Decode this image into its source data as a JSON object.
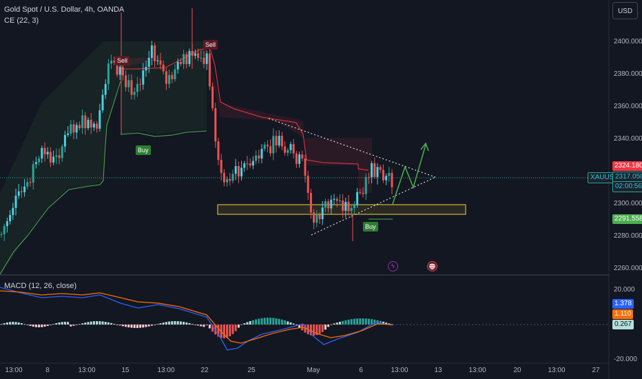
{
  "header": {
    "symbol_title": "Gold Spot / U.S. Dollar, 4h, OANDA",
    "indicator_ce": "CE (22, 3)",
    "currency": "USD"
  },
  "macd": {
    "label": "MACD (12, 26, close)"
  },
  "price_axis": {
    "ticks": [
      "2400.000",
      "2380.000",
      "2360.000",
      "2340.000",
      "2300.000",
      "2280.000",
      "2260.000"
    ],
    "macd_ticks": [
      "20.000",
      "-20.000"
    ]
  },
  "tags": {
    "upper_stop": "2324.180",
    "symbol": "XAUUSD",
    "last_price": "2317.050",
    "countdown": "02:00:56",
    "lower_stop": "2291.558",
    "macd_val": "1.378",
    "signal_val": "1.110",
    "hist_val": "0.267"
  },
  "signals": {
    "sell_1": "Sell",
    "sell_2": "Sell",
    "buy_1": "Buy",
    "buy_2": "Buy"
  },
  "time_axis": [
    "13:00",
    "8",
    "13:00",
    "15",
    "13:00",
    "22",
    "25",
    "May",
    "6",
    "13:00",
    "13",
    "13:00",
    "20",
    "13:00",
    "27"
  ],
  "colors": {
    "up": "#26a69a",
    "up_bright": "#4dd0e1",
    "down": "#ef5350",
    "green_line": "#4caf50",
    "red_line": "#f23645",
    "zone": "#f2d33d"
  }
}
